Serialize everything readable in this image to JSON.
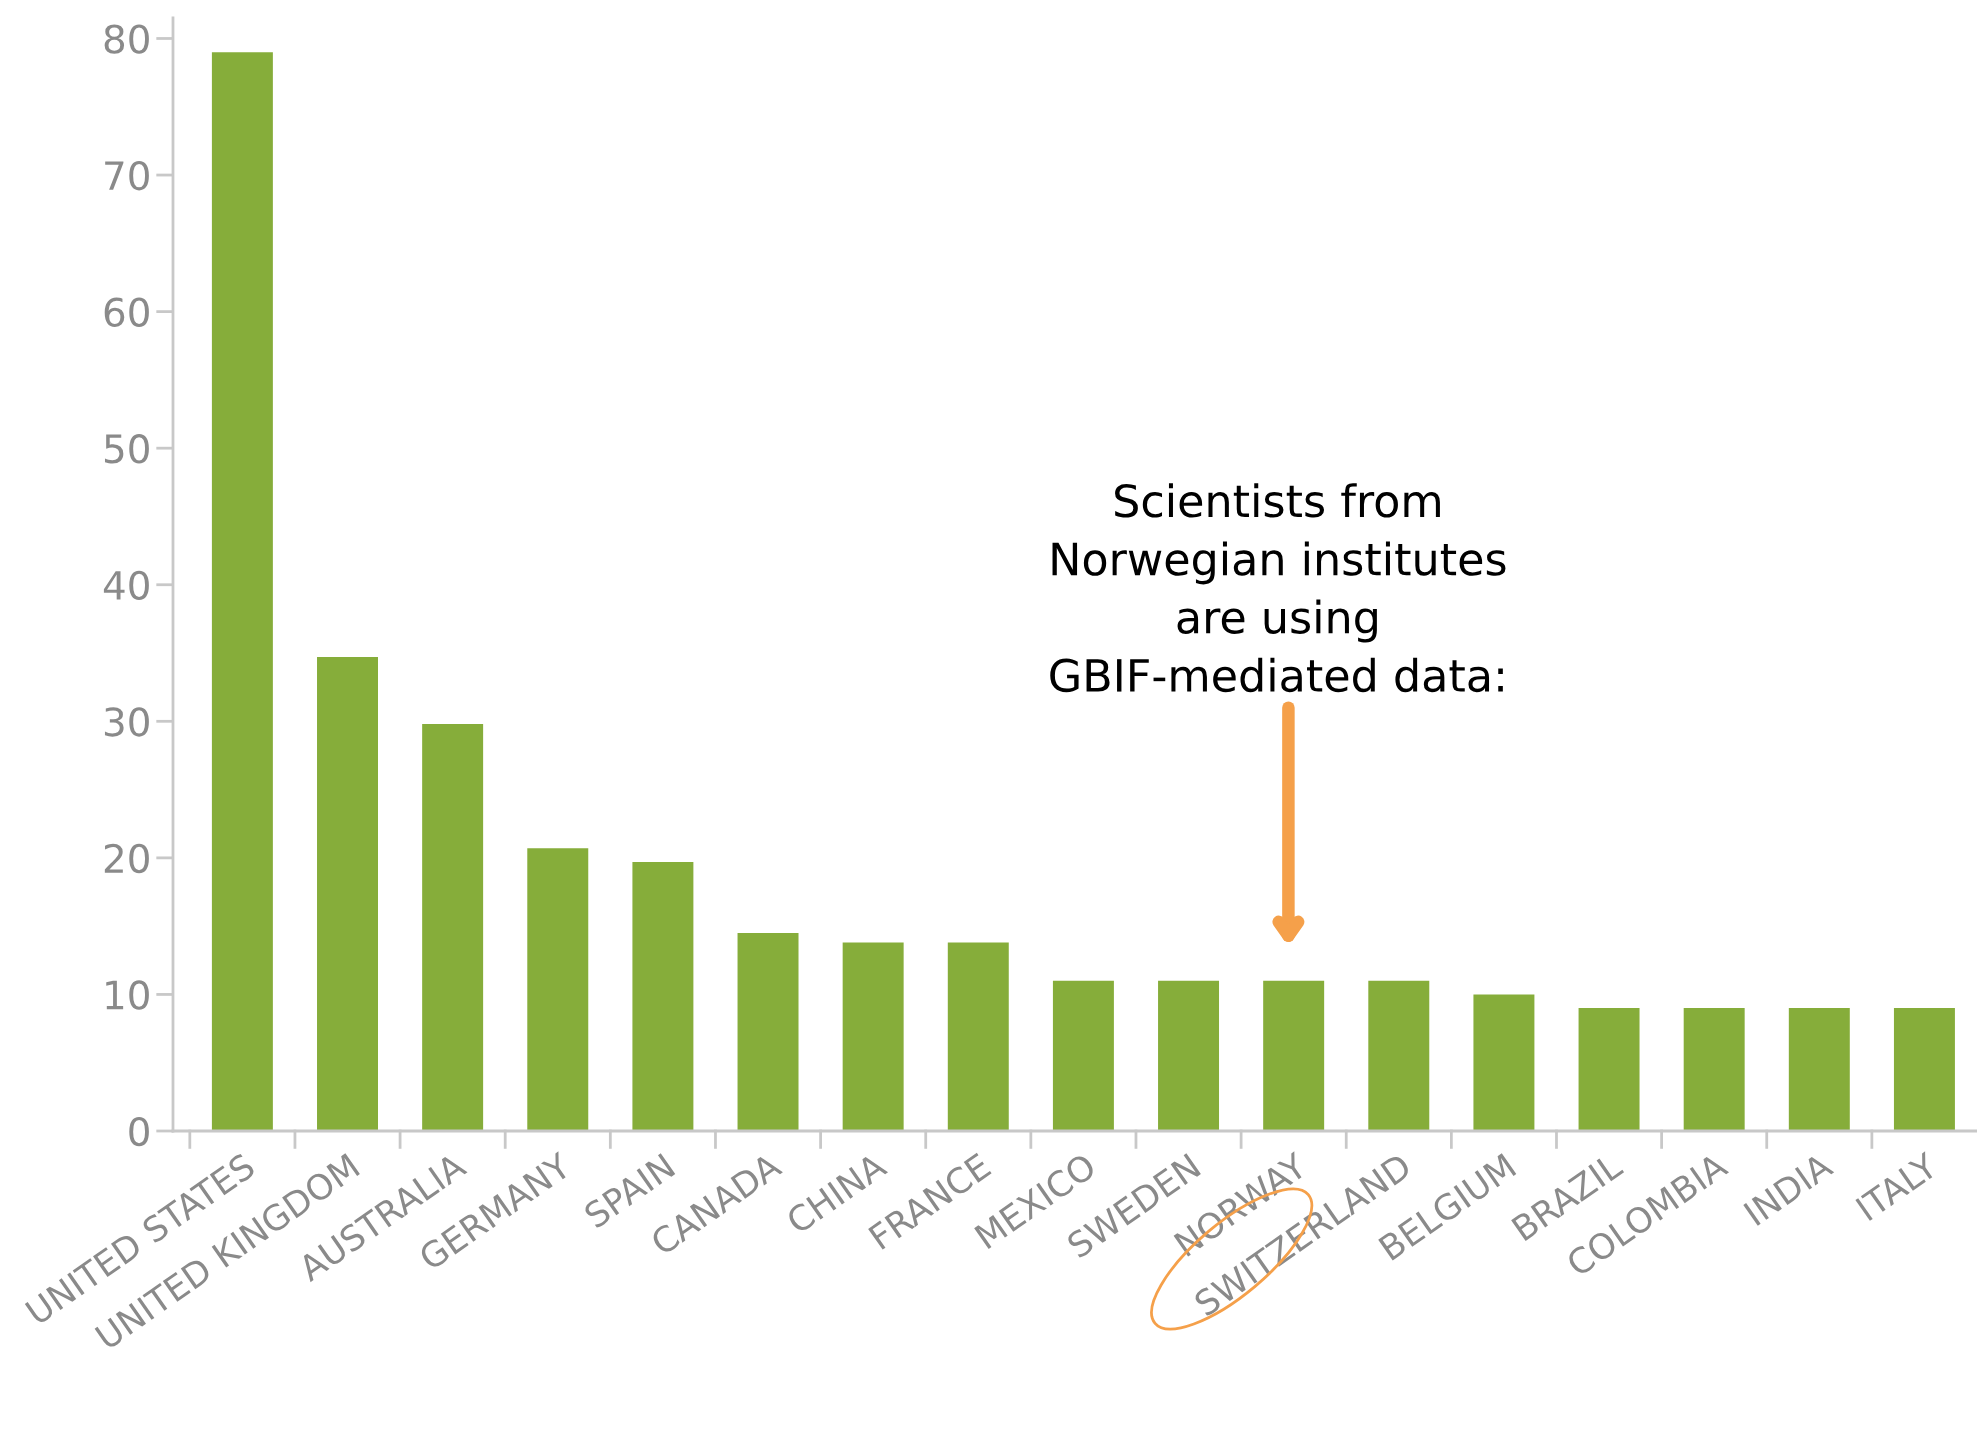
{
  "chart_data": {
    "type": "bar",
    "categories": [
      "UNITED STATES",
      "UNITED KINGDOM",
      "AUSTRALIA",
      "GERMANY",
      "SPAIN",
      "CANADA",
      "CHINA",
      "FRANCE",
      "MEXICO",
      "SWEDEN",
      "NORWAY",
      "SWITZERLAND",
      "BELGIUM",
      "BRAZIL",
      "COLOMBIA",
      "INDIA",
      "ITALY"
    ],
    "values": [
      79,
      34.7,
      29.8,
      20.7,
      19.7,
      14.5,
      13.8,
      13.8,
      11,
      11,
      11,
      11,
      10,
      9,
      9,
      9,
      9
    ],
    "color": "#86ad3a",
    "ylim": [
      0,
      81.5
    ],
    "yticks": [
      0,
      10,
      20,
      30,
      40,
      50,
      60,
      70,
      80
    ],
    "grid": false,
    "legend": false,
    "annotations": [
      "Scientists from\nNorwegian institutes\nare using\nGBIF-mediated data:"
    ]
  }
}
